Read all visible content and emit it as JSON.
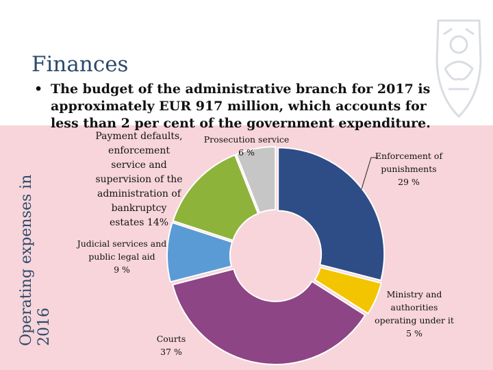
{
  "slide": {
    "title": "Finances",
    "bullet": "The budget of the administrative branch for 2017 is approximately EUR 917 million, which accounts for less than 2 per cent of the government expenditure.",
    "vertical_label": "Operating expenses in 2016"
  },
  "chart_data": {
    "type": "pie",
    "title": "Operating expenses in 2016",
    "unit": "%",
    "slices": [
      {
        "name": "Enforcement of punishments",
        "value": 29,
        "color": "#2e4d86",
        "label_lines": [
          "Enforcement of",
          "punishments",
          "29 %"
        ]
      },
      {
        "name": "Ministry and authorities operating under it",
        "value": 5,
        "color": "#f3c500",
        "label_lines": [
          "Ministry and",
          "authorities",
          "operating under it",
          "5 %"
        ]
      },
      {
        "name": "Courts",
        "value": 37,
        "color": "#8d4585",
        "label_lines": [
          "Courts",
          "37 %"
        ]
      },
      {
        "name": "Judicial services and public legal aid",
        "value": 9,
        "color": "#5b9bd5",
        "label_lines": [
          "Judicial services and",
          "public legal aid",
          "9 %"
        ]
      },
      {
        "name": "Payment defaults, enforcement service and supervision of the administration of bankruptcy estates",
        "value": 14,
        "color": "#8db33a",
        "label_lines": [
          "Payment defaults,",
          "enforcement",
          "service and",
          "supervision of the",
          "administration of",
          "bankruptcy",
          "estates 14%"
        ]
      },
      {
        "name": "Prosecution service",
        "value": 6,
        "color": "#c6c6c6",
        "label_lines": [
          "Prosecution service",
          "6 %"
        ]
      }
    ]
  }
}
